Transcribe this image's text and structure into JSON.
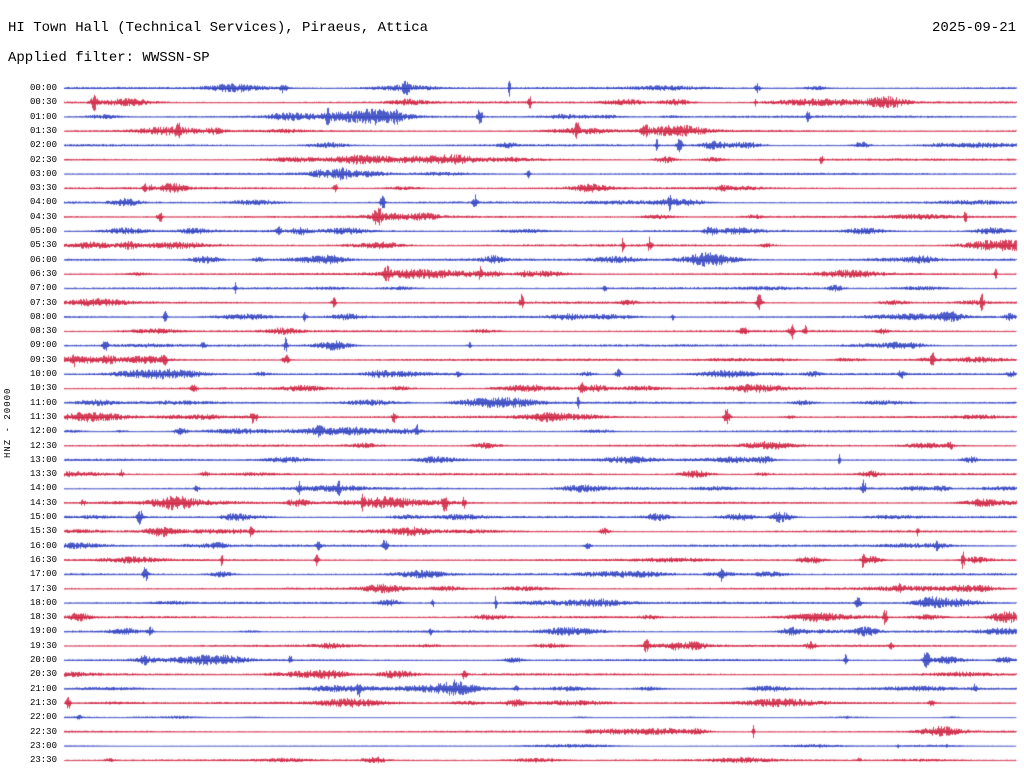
{
  "header": {
    "title": "HI Town Hall (Technical Services), Piraeus, Attica",
    "date": "2025-09-21",
    "filter_line": "Applied filter: WWSSN-SP"
  },
  "axis": {
    "channel_scale_label": "HNZ - 20000"
  },
  "chart_data": {
    "type": "helicorder",
    "title": "HI Town Hall (Technical Services), Piraeus, Attica",
    "date": "2025-09-21",
    "filter": "WWSSN-SP",
    "channel": "HNZ",
    "amplitude_scale": 20000,
    "minutes_per_row": 30,
    "rows_count": 48,
    "legend_position": "none",
    "grid": false,
    "trace_colors": {
      "blue": "#2233bb",
      "red": "#cc1133"
    },
    "noise_seed": 20250921,
    "rows": [
      {
        "label": "00:00",
        "color": "blue",
        "amp": 1
      },
      {
        "label": "00:30",
        "color": "red",
        "amp": 1
      },
      {
        "label": "01:00",
        "color": "blue",
        "amp": 1
      },
      {
        "label": "01:30",
        "color": "red",
        "amp": 1
      },
      {
        "label": "02:00",
        "color": "blue",
        "amp": 1
      },
      {
        "label": "02:30",
        "color": "red",
        "amp": 1
      },
      {
        "label": "03:00",
        "color": "blue",
        "amp": 1
      },
      {
        "label": "03:30",
        "color": "red",
        "amp": 1
      },
      {
        "label": "04:00",
        "color": "blue",
        "amp": 1
      },
      {
        "label": "04:30",
        "color": "red",
        "amp": 1
      },
      {
        "label": "05:00",
        "color": "blue",
        "amp": 1
      },
      {
        "label": "05:30",
        "color": "red",
        "amp": 1
      },
      {
        "label": "06:00",
        "color": "blue",
        "amp": 1
      },
      {
        "label": "06:30",
        "color": "red",
        "amp": 1
      },
      {
        "label": "07:00",
        "color": "blue",
        "amp": 1
      },
      {
        "label": "07:30",
        "color": "red",
        "amp": 1
      },
      {
        "label": "08:00",
        "color": "blue",
        "amp": 1
      },
      {
        "label": "08:30",
        "color": "red",
        "amp": 1
      },
      {
        "label": "09:00",
        "color": "blue",
        "amp": 1
      },
      {
        "label": "09:30",
        "color": "red",
        "amp": 1
      },
      {
        "label": "10:00",
        "color": "blue",
        "amp": 1
      },
      {
        "label": "10:30",
        "color": "red",
        "amp": 1
      },
      {
        "label": "11:00",
        "color": "blue",
        "amp": 1
      },
      {
        "label": "11:30",
        "color": "red",
        "amp": 1
      },
      {
        "label": "12:00",
        "color": "blue",
        "amp": 1
      },
      {
        "label": "12:30",
        "color": "red",
        "amp": 1
      },
      {
        "label": "13:00",
        "color": "blue",
        "amp": 1
      },
      {
        "label": "13:30",
        "color": "red",
        "amp": 1
      },
      {
        "label": "14:00",
        "color": "blue",
        "amp": 1
      },
      {
        "label": "14:30",
        "color": "red",
        "amp": 1
      },
      {
        "label": "15:00",
        "color": "blue",
        "amp": 1
      },
      {
        "label": "15:30",
        "color": "red",
        "amp": 1
      },
      {
        "label": "16:00",
        "color": "blue",
        "amp": 1
      },
      {
        "label": "16:30",
        "color": "red",
        "amp": 1
      },
      {
        "label": "17:00",
        "color": "blue",
        "amp": 1
      },
      {
        "label": "17:30",
        "color": "red",
        "amp": 1
      },
      {
        "label": "18:00",
        "color": "blue",
        "amp": 1
      },
      {
        "label": "18:30",
        "color": "red",
        "amp": 1
      },
      {
        "label": "19:00",
        "color": "blue",
        "amp": 1
      },
      {
        "label": "19:30",
        "color": "red",
        "amp": 1
      },
      {
        "label": "20:00",
        "color": "blue",
        "amp": 1
      },
      {
        "label": "20:30",
        "color": "red",
        "amp": 1
      },
      {
        "label": "21:00",
        "color": "blue",
        "amp": 1
      },
      {
        "label": "21:30",
        "color": "red",
        "amp": 1
      },
      {
        "label": "22:00",
        "color": "blue",
        "amp": 0.25
      },
      {
        "label": "22:30",
        "color": "red",
        "amp": 0.8
      },
      {
        "label": "23:00",
        "color": "blue",
        "amp": 0.3
      },
      {
        "label": "23:30",
        "color": "red",
        "amp": 0.9
      }
    ]
  }
}
